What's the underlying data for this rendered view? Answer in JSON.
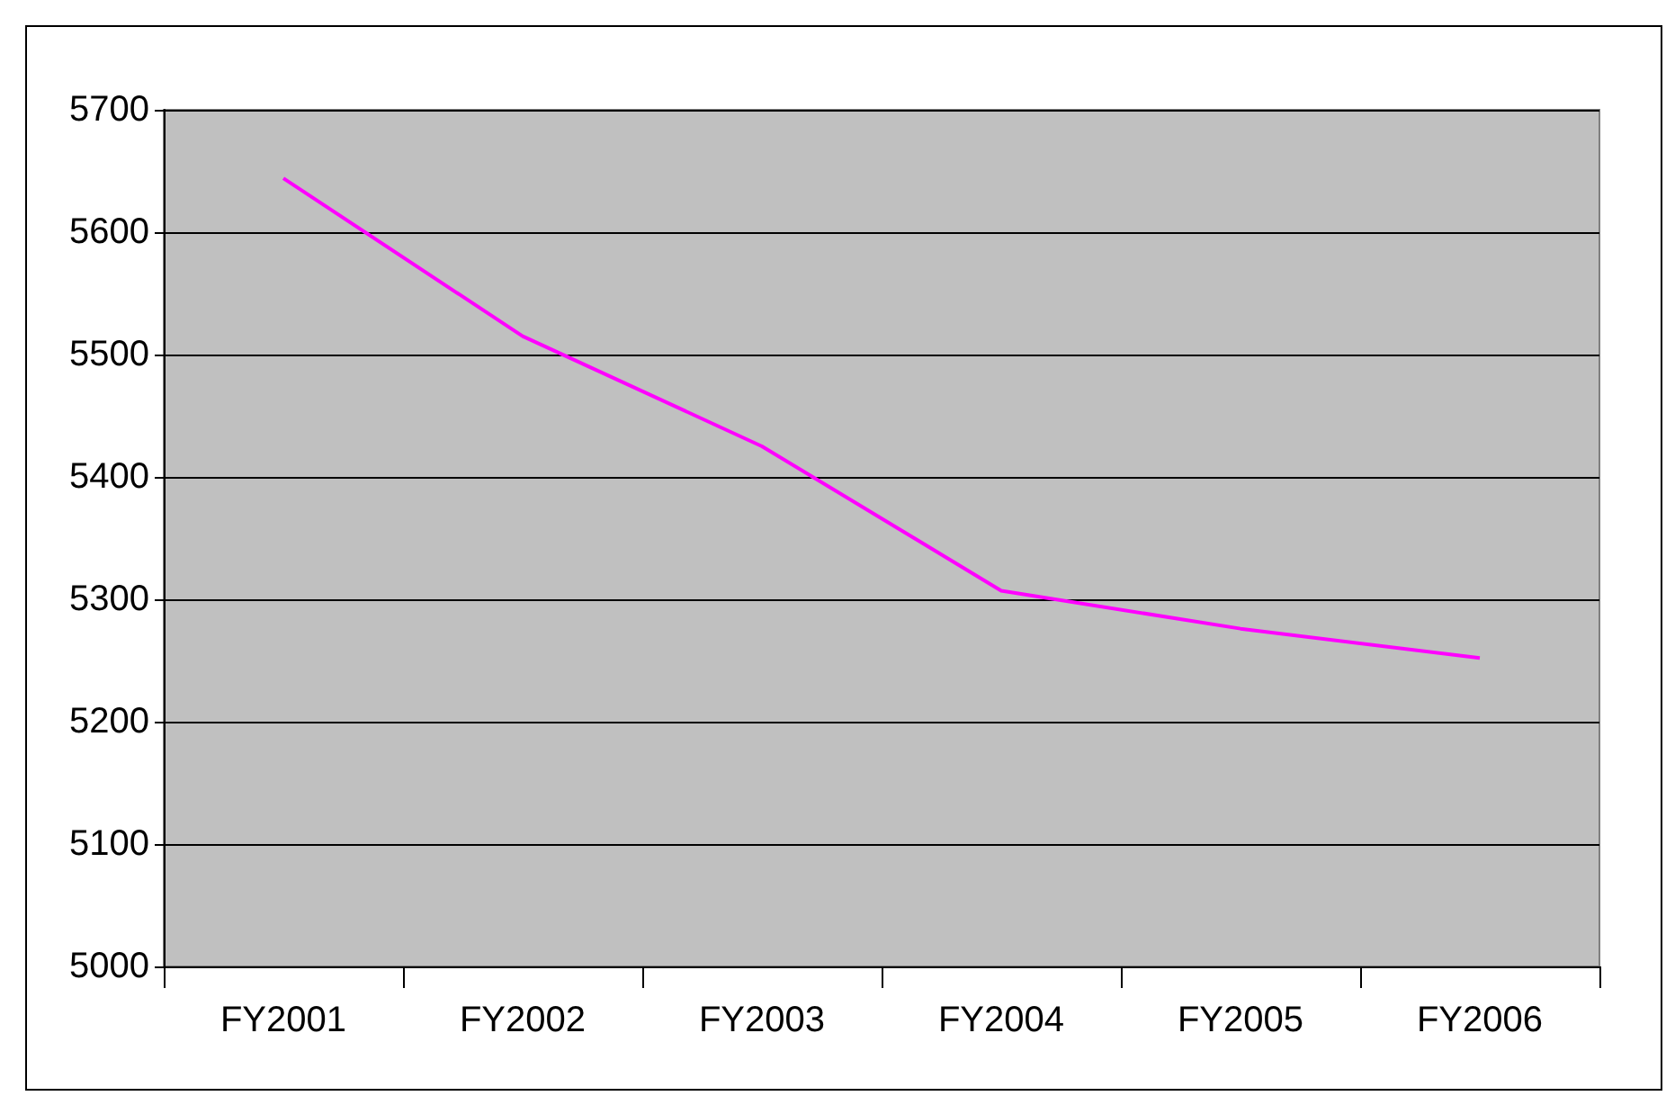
{
  "chart_data": {
    "type": "line",
    "categories": [
      "FY2001",
      "FY2002",
      "FY2003",
      "FY2004",
      "FY2005",
      "FY2006"
    ],
    "series": [
      {
        "color": "#ff00ff",
        "values": [
          5644,
          5515,
          5425,
          5307,
          5276,
          5252
        ]
      }
    ],
    "ylim": [
      5000,
      5700
    ],
    "yticks": [
      5000,
      5100,
      5200,
      5300,
      5400,
      5500,
      5600,
      5700
    ],
    "grid": "y",
    "marker": "none",
    "line_style": "solid"
  }
}
